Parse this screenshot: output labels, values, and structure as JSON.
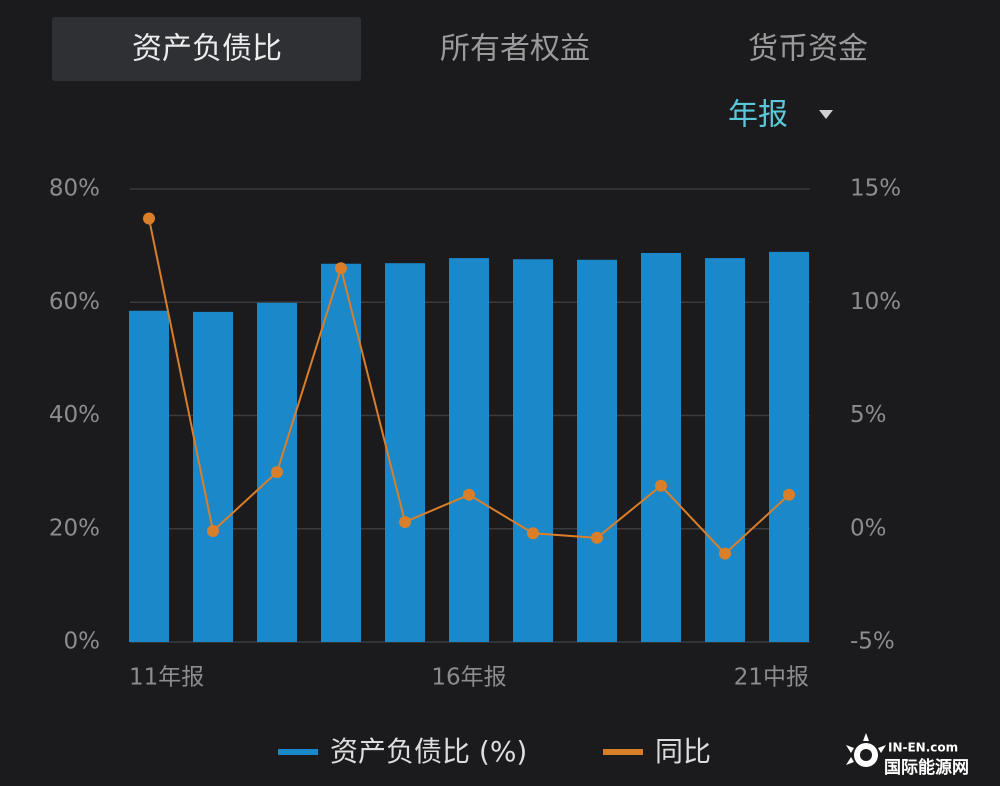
{
  "tabs": [
    "资产负债比",
    "所有者权益",
    "货币资金"
  ],
  "period": "年报",
  "watermark": {
    "site": "IN-EN.com",
    "name": "国际能源网"
  },
  "chart_data": {
    "type": "bar",
    "categories": [
      "11年报",
      null,
      null,
      null,
      null,
      "16年报",
      null,
      null,
      null,
      null,
      "21中报"
    ],
    "series": [
      {
        "name": "资产负债比 (%)",
        "type": "bar",
        "color": "#1a88c9",
        "values": [
          58.5,
          58.3,
          59.9,
          66.8,
          66.9,
          67.8,
          67.6,
          67.5,
          68.7,
          67.8,
          68.9
        ]
      },
      {
        "name": "同比",
        "type": "line",
        "axis": "y2",
        "color": "#d97f2a",
        "values": [
          13.7,
          -0.1,
          2.5,
          11.5,
          0.3,
          1.5,
          -0.2,
          -0.4,
          1.9,
          -1.1,
          1.5
        ]
      }
    ],
    "ylim": [
      0,
      80
    ],
    "yticks": [
      {
        "value": 0,
        "label": "0%"
      },
      {
        "value": 20,
        "label": "20%"
      },
      {
        "value": 40,
        "label": "40%"
      },
      {
        "value": 60,
        "label": "60%"
      },
      {
        "value": 80,
        "label": "80%"
      }
    ],
    "y2lim": [
      -5,
      15
    ],
    "y2ticks": [
      {
        "value": -5,
        "label": "-5%"
      },
      {
        "value": 0,
        "label": "0%"
      },
      {
        "value": 5,
        "label": "5%"
      },
      {
        "value": 10,
        "label": "10%"
      },
      {
        "value": 15,
        "label": "15%"
      }
    ],
    "grid": true
  }
}
